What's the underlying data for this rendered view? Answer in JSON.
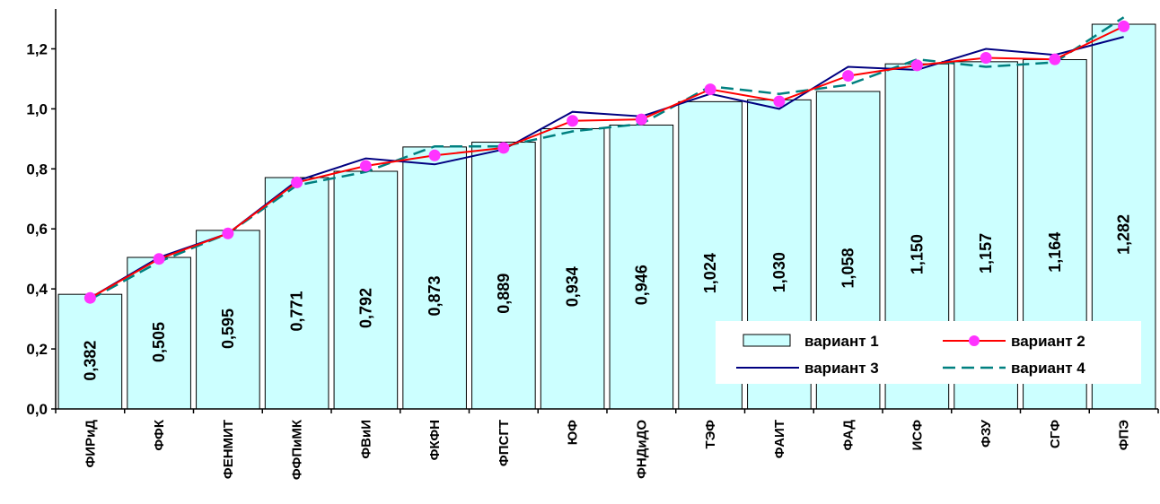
{
  "chart_data": {
    "type": "bar",
    "categories": [
      "ФИРиД",
      "ФФК",
      "ФЕНМИТ",
      "ФФПиМК",
      "ФВиИ",
      "ФКФН",
      "ФПСГТ",
      "ЮФ",
      "ФНДиДО",
      "ТЭФ",
      "ФАИТ",
      "ФАД",
      "ИСФ",
      "ФЗУ",
      "СГФ",
      "ФПЭ"
    ],
    "series": [
      {
        "name": "вариант 1",
        "kind": "bar",
        "values": [
          0.382,
          0.505,
          0.595,
          0.771,
          0.792,
          0.873,
          0.889,
          0.934,
          0.946,
          1.024,
          1.03,
          1.058,
          1.15,
          1.157,
          1.164,
          1.282
        ],
        "labels": [
          "0,382",
          "0,505",
          "0,595",
          "0,771",
          "0,792",
          "0,873",
          "0,889",
          "0,934",
          "0,946",
          "1,024",
          "1,030",
          "1,058",
          "1,150",
          "1,157",
          "1,164",
          "1,282"
        ]
      },
      {
        "name": "вариант 2",
        "kind": "line-markers",
        "values": [
          0.37,
          0.5,
          0.585,
          0.755,
          0.81,
          0.845,
          0.87,
          0.96,
          0.965,
          1.065,
          1.025,
          1.11,
          1.145,
          1.17,
          1.165,
          1.275
        ]
      },
      {
        "name": "вариант 3",
        "kind": "line",
        "values": [
          0.37,
          0.505,
          0.585,
          0.76,
          0.835,
          0.815,
          0.865,
          0.99,
          0.975,
          1.05,
          1.0,
          1.14,
          1.13,
          1.2,
          1.18,
          1.24
        ]
      },
      {
        "name": "вариант 4",
        "kind": "line-dashed",
        "values": [
          0.365,
          0.49,
          0.585,
          0.745,
          0.79,
          0.875,
          0.875,
          0.925,
          0.95,
          1.075,
          1.05,
          1.08,
          1.165,
          1.14,
          1.155,
          1.305
        ]
      }
    ],
    "ylim": [
      0,
      1.3
    ],
    "yticks": [
      0,
      0.2,
      0.4,
      0.6,
      0.8,
      1.0,
      1.2
    ],
    "ytick_labels": [
      "0,0",
      "0,2",
      "0,4",
      "0,6",
      "0,8",
      "1,0",
      "1,2"
    ],
    "legend_position": "lower-right",
    "grid": false,
    "colors": {
      "bar_fill": "#ccffff",
      "bar_stroke": "#000000",
      "variant2": "#ff0000",
      "variant2_marker": "#ff33ff",
      "variant3": "#000080",
      "variant4": "#008080"
    }
  }
}
